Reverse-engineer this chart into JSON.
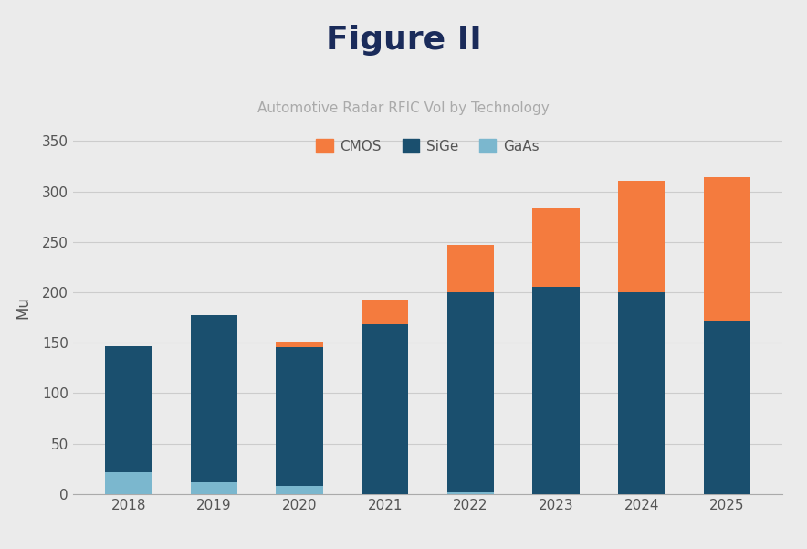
{
  "years": [
    2018,
    2019,
    2020,
    2021,
    2022,
    2023,
    2024,
    2025
  ],
  "sige": [
    125,
    165,
    138,
    168,
    198,
    205,
    200,
    172
  ],
  "gaas": [
    22,
    12,
    8,
    0,
    2,
    0,
    0,
    0
  ],
  "cmos": [
    0,
    0,
    5,
    25,
    47,
    78,
    110,
    142
  ],
  "color_cmos": "#F47B3E",
  "color_sige": "#1A4F6E",
  "color_gaas": "#7BB7CE",
  "title_main": "Figure II",
  "subtitle": "Automotive Radar RFIC Vol by Technology",
  "ylabel": "Mu",
  "ylim": [
    0,
    370
  ],
  "yticks": [
    0,
    50,
    100,
    150,
    200,
    250,
    300,
    350
  ],
  "bg_color": "#EBEBEB",
  "plot_bg_color": "#EBEBEB",
  "title_color": "#1A2B5A",
  "subtitle_color": "#AAAAAA",
  "tick_color": "#555555",
  "grid_color": "#CCCCCC"
}
